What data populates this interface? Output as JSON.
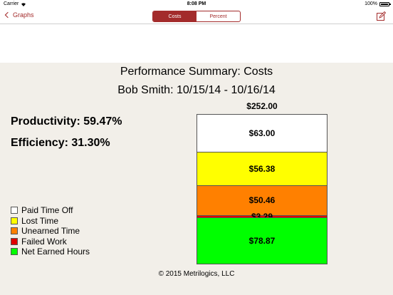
{
  "status_bar": {
    "carrier": "Carrier",
    "time": "8:08 PM",
    "battery": "100%"
  },
  "nav": {
    "back_label": "Graphs",
    "tabs": [
      {
        "label": "Costs",
        "active": true
      },
      {
        "label": "Percent",
        "active": false
      }
    ]
  },
  "report": {
    "title": "Performance Summary: Costs",
    "subtitle": "Bob Smith: 10/15/14 - 10/16/14",
    "productivity": "Productivity: 59.47%",
    "efficiency": "Efficiency: 31.30%"
  },
  "legend": [
    {
      "label": "Paid Time Off",
      "color": "#ffffff"
    },
    {
      "label": "Lost Time",
      "color": "#ffff00"
    },
    {
      "label": "Unearned Time",
      "color": "#ff8000"
    },
    {
      "label": "Failed Work",
      "color": "#e00000"
    },
    {
      "label": "Net Earned Hours",
      "color": "#00ff00"
    }
  ],
  "chart_data": {
    "type": "bar",
    "categories": [
      "Bob Smith: 10/15/14 - 10/16/14"
    ],
    "total_label": "$252.00",
    "total": 252.0,
    "series": [
      {
        "name": "Paid Time Off",
        "value": 63.0,
        "label": "$63.00",
        "color": "#ffffff"
      },
      {
        "name": "Lost Time",
        "value": 56.38,
        "label": "$56.38",
        "color": "#ffff00"
      },
      {
        "name": "Unearned Time",
        "value": 50.46,
        "label": "$50.46",
        "color": "#ff8000"
      },
      {
        "name": "Failed Work",
        "value": 3.29,
        "label": "$3.29",
        "color": "#e00000"
      },
      {
        "name": "Net Earned Hours",
        "value": 78.87,
        "label": "$78.87",
        "color": "#00ff00"
      }
    ]
  },
  "footer": {
    "copyright": "© 2015 Metrilogics, LLC"
  }
}
